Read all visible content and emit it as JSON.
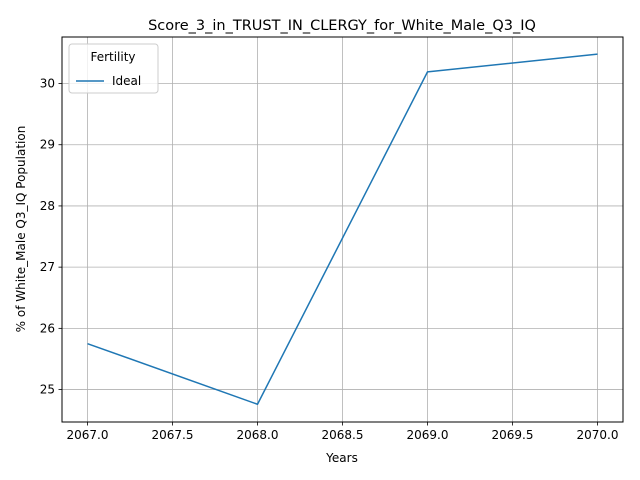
{
  "chart_data": {
    "type": "line",
    "title": "Score_3_in_TRUST_IN_CLERGY_for_White_Male_Q3_IQ",
    "xlabel": "Years",
    "ylabel": "% of White_Male Q3_IQ Population",
    "x": [
      2067,
      2068,
      2069,
      2070
    ],
    "x_ticks": [
      "2067.0",
      "2067.5",
      "2068.0",
      "2068.5",
      "2069.0",
      "2069.5",
      "2070.0"
    ],
    "y_ticks": [
      "25",
      "26",
      "27",
      "28",
      "29",
      "30"
    ],
    "xlim": [
      2066.85,
      2070.15
    ],
    "ylim": [
      24.47,
      30.76
    ],
    "grid": true,
    "legend": {
      "title": "Fertility",
      "position": "top-left"
    },
    "series": [
      {
        "name": "Ideal",
        "color": "#1f77b4",
        "values": [
          25.75,
          24.76,
          30.19,
          30.48
        ]
      }
    ]
  }
}
